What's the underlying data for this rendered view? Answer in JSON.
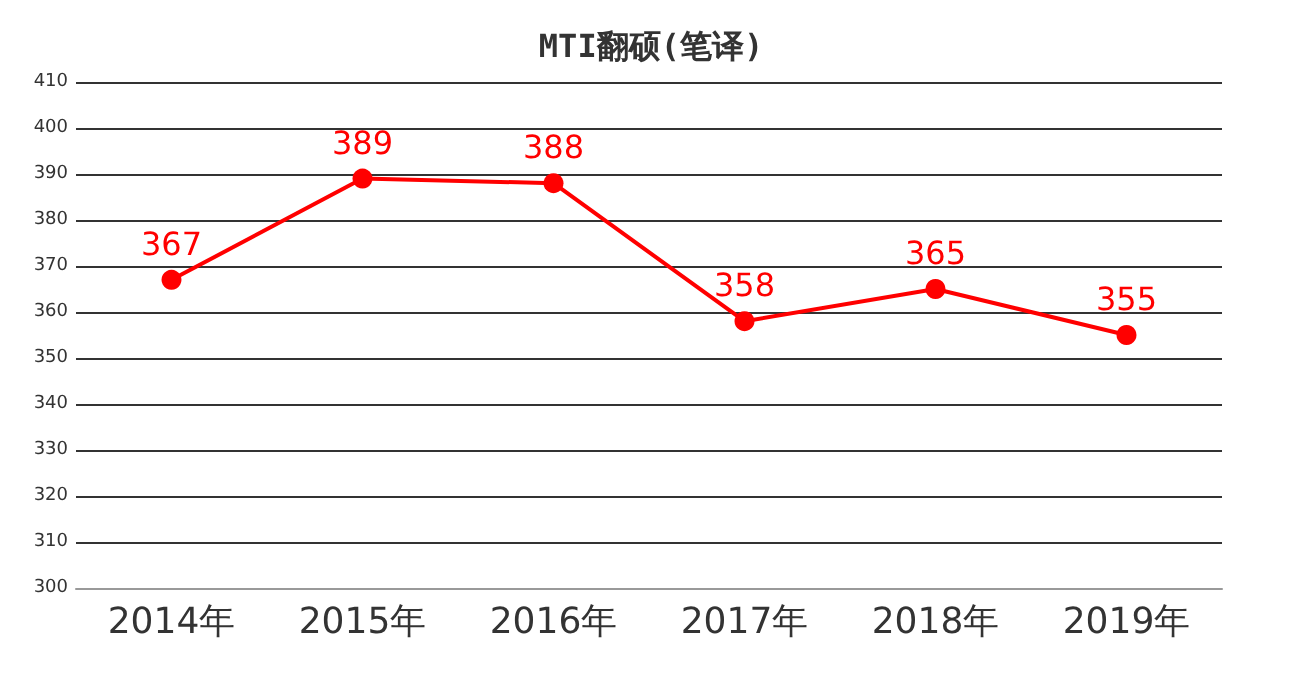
{
  "chart_data": {
    "type": "line",
    "title": "MTI翻硕(笔译)",
    "categories": [
      "2014年",
      "2015年",
      "2016年",
      "2017年",
      "2018年",
      "2019年"
    ],
    "series": [
      {
        "color": "#ff0000",
        "values": [
          367,
          389,
          388,
          358,
          365,
          355
        ]
      }
    ],
    "ylim": [
      300,
      410
    ],
    "yticks": [
      300,
      310,
      320,
      330,
      340,
      350,
      360,
      370,
      380,
      390,
      400,
      410
    ],
    "grid": "y",
    "marker": "circle",
    "data_labels": true
  }
}
